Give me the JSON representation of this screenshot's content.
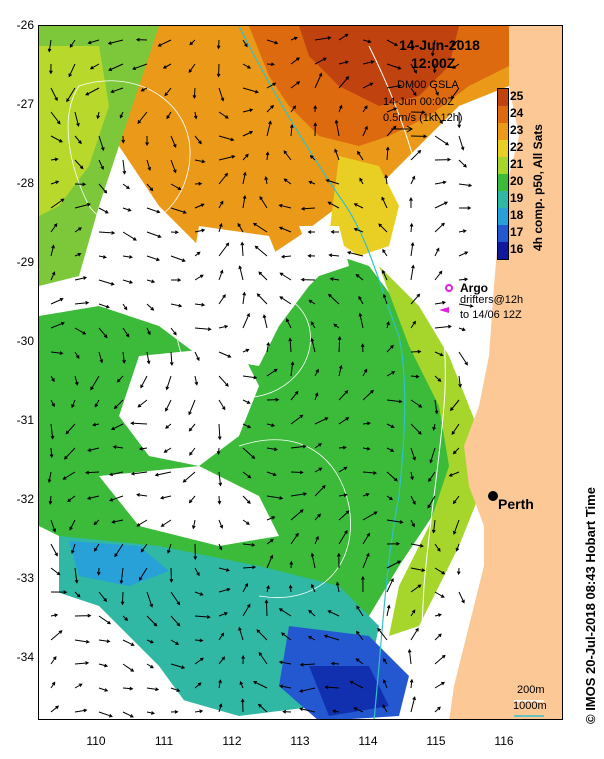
{
  "title": {
    "date": "14-Jun-2018",
    "time": "12:00Z"
  },
  "info": {
    "product": "DM00 GSLA",
    "product_time": "14-Jun 00:00Z",
    "scale": "0.5m/s (1kt 12h)"
  },
  "colorbar": {
    "title": "4h comp. p50, All Sats",
    "labels": [
      "25",
      "24",
      "23",
      "22",
      "21",
      "20",
      "19",
      "18",
      "17",
      "16"
    ],
    "colors": [
      "#c0420e",
      "#de6a10",
      "#ea9a18",
      "#e9cf24",
      "#a6d62c",
      "#3cba3a",
      "#30b8a4",
      "#28a0d8",
      "#2458d0",
      "#10189c"
    ]
  },
  "legend": {
    "argo_label": "Argo",
    "drifters_label": "drifters@12h",
    "drifters_sub": "to 14/06 12Z",
    "city": "Perth",
    "depth1": "200m",
    "depth2": "1000m"
  },
  "axes": {
    "y_ticks": [
      "-26",
      "-27",
      "-28",
      "-29",
      "-30",
      "-31",
      "-32",
      "-33",
      "-34"
    ],
    "x_ticks": [
      "110",
      "111",
      "112",
      "113",
      "114",
      "115",
      "116"
    ]
  },
  "copyright": "© IMOS 20-Jul-2018 08:43 Hobart Time",
  "colors": {
    "land": "#fcc896",
    "warm": "#de6a10",
    "mid": "#ea9a18",
    "green": "#3cba3a",
    "cyan": "#30b8a4",
    "blue": "#2458d0"
  }
}
